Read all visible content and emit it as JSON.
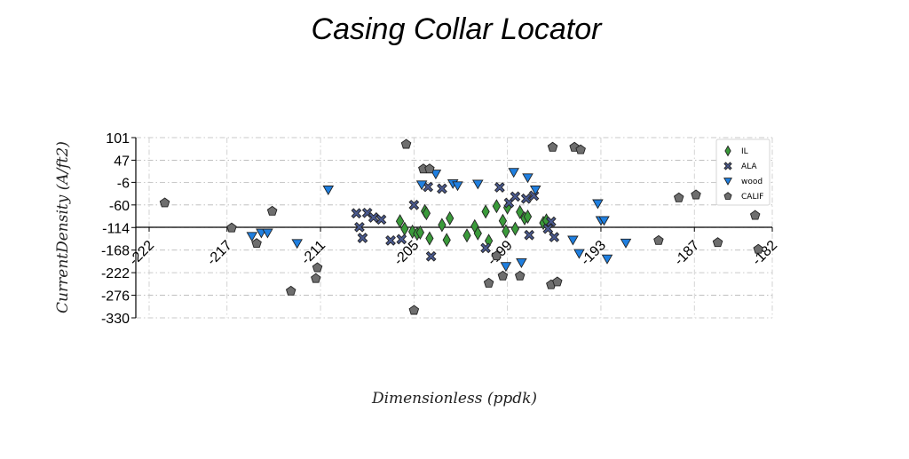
{
  "chart_data": {
    "type": "scatter",
    "title": "Casing Collar Locator",
    "xlabel": "Dimensionless (ppdk)",
    "ylabel": "CurrentDensity (A/ft2)",
    "xlim": [
      -223,
      -182
    ],
    "ylim": [
      -330,
      101
    ],
    "x_ticks": [
      -222,
      -217,
      -211,
      -205,
      -199,
      -193,
      -187,
      -182
    ],
    "y_ticks": [
      101,
      47,
      -6,
      -60,
      -114,
      -168,
      -222,
      -276,
      -330
    ],
    "x_tick_labels": [
      "-222",
      "-217",
      "-211",
      "-205",
      "-199",
      "-193",
      "-187",
      "-182"
    ],
    "y_tick_labels": [
      "101",
      "47",
      "-6",
      "-60",
      "-114",
      "-168",
      "-222",
      "-276",
      "-330"
    ],
    "grid": true,
    "legend_position": "top-right",
    "series": [
      {
        "name": "IL",
        "marker": "diamond",
        "color": "#3a9a3a",
        "points": [
          [
            -205.9,
            -99
          ],
          [
            -205.6,
            -117
          ],
          [
            -205.1,
            -124
          ],
          [
            -204.8,
            -129
          ],
          [
            -204.6,
            -126
          ],
          [
            -204.3,
            -75
          ],
          [
            -204.2,
            -80
          ],
          [
            -204.0,
            -140
          ],
          [
            -203.2,
            -108
          ],
          [
            -202.9,
            -144
          ],
          [
            -202.7,
            -92
          ],
          [
            -201.6,
            -133
          ],
          [
            -201.1,
            -111
          ],
          [
            -200.9,
            -128
          ],
          [
            -200.4,
            -76
          ],
          [
            -200.2,
            -146
          ],
          [
            -199.7,
            -63
          ],
          [
            -199.3,
            -98
          ],
          [
            -199.1,
            -123
          ],
          [
            -199.0,
            -66
          ],
          [
            -198.5,
            -117
          ],
          [
            -198.2,
            -77
          ],
          [
            -197.9,
            -92
          ],
          [
            -197.7,
            -88
          ],
          [
            -196.7,
            -103
          ],
          [
            -196.5,
            -97
          ]
        ]
      },
      {
        "name": "ALA",
        "marker": "x",
        "color": "#4a5a90",
        "points": [
          [
            -208.7,
            -80
          ],
          [
            -208.5,
            -113
          ],
          [
            -208.3,
            -139
          ],
          [
            -208.0,
            -79
          ],
          [
            -207.6,
            -90
          ],
          [
            -207.1,
            -95
          ],
          [
            -206.5,
            -145
          ],
          [
            -205.8,
            -142
          ],
          [
            -205.0,
            -60
          ],
          [
            -204.1,
            -17
          ],
          [
            -203.9,
            -183
          ],
          [
            -203.2,
            -21
          ],
          [
            -200.4,
            -163
          ],
          [
            -199.5,
            -18
          ],
          [
            -198.9,
            -55
          ],
          [
            -198.5,
            -40
          ],
          [
            -197.8,
            -45
          ],
          [
            -197.6,
            -132
          ],
          [
            -197.3,
            -38
          ],
          [
            -196.4,
            -117
          ],
          [
            -196.2,
            -100
          ],
          [
            -196.0,
            -137
          ]
        ]
      },
      {
        "name": "wood",
        "marker": "triangle-down",
        "color": "#1f7fe0",
        "points": [
          [
            -215.4,
            -135
          ],
          [
            -214.8,
            -127
          ],
          [
            -214.4,
            -127
          ],
          [
            -212.5,
            -152
          ],
          [
            -210.5,
            -24
          ],
          [
            -204.5,
            -12
          ],
          [
            -203.6,
            14
          ],
          [
            -202.5,
            -9
          ],
          [
            -202.2,
            -14
          ],
          [
            -200.9,
            -10
          ],
          [
            -199.1,
            -207
          ],
          [
            -198.6,
            18
          ],
          [
            -198.1,
            -198
          ],
          [
            -197.7,
            5
          ],
          [
            -197.2,
            -24
          ],
          [
            -194.8,
            -144
          ],
          [
            -194.4,
            -176
          ],
          [
            -193.2,
            -57
          ],
          [
            -193.0,
            -97
          ],
          [
            -192.8,
            -97
          ],
          [
            -192.6,
            -189
          ],
          [
            -191.4,
            -151
          ]
        ]
      },
      {
        "name": "CALIF",
        "marker": "pentagon",
        "color": "#6e6e6e",
        "points": [
          [
            -221.0,
            -55
          ],
          [
            -216.7,
            -115
          ],
          [
            -215.1,
            -152
          ],
          [
            -214.1,
            -75
          ],
          [
            -212.9,
            -266
          ],
          [
            -211.3,
            -236
          ],
          [
            -211.2,
            -210
          ],
          [
            -205.5,
            85
          ],
          [
            -205.0,
            -312
          ],
          [
            -204.4,
            26
          ],
          [
            -204.0,
            26
          ],
          [
            -200.2,
            -247
          ],
          [
            -199.7,
            -182
          ],
          [
            -199.3,
            -230
          ],
          [
            -198.2,
            -230
          ],
          [
            -196.2,
            -251
          ],
          [
            -196.1,
            78
          ],
          [
            -195.8,
            -244
          ],
          [
            -194.7,
            78
          ],
          [
            -194.3,
            72
          ],
          [
            -189.3,
            -145
          ],
          [
            -188.0,
            -43
          ],
          [
            -186.9,
            -36
          ],
          [
            -185.5,
            -150
          ],
          [
            -183.1,
            -85
          ],
          [
            -182.9,
            -166
          ]
        ]
      }
    ]
  }
}
